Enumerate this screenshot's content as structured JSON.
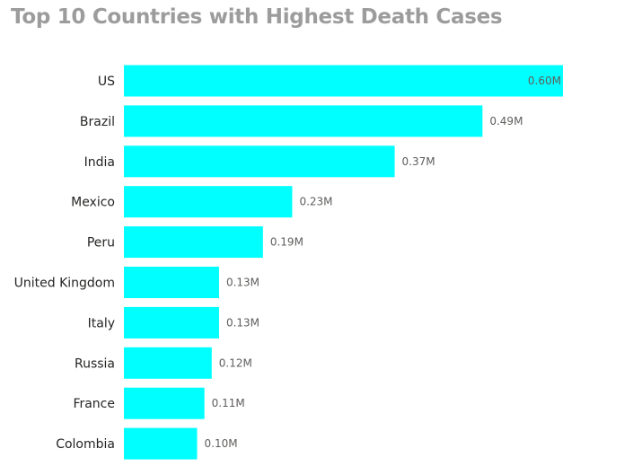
{
  "chart_data": {
    "type": "bar",
    "orientation": "horizontal",
    "title": "Top 10 Countries with Highest Death Cases",
    "categories": [
      "US",
      "Brazil",
      "India",
      "Mexico",
      "Peru",
      "United Kingdom",
      "Italy",
      "Russia",
      "France",
      "Colombia"
    ],
    "values": [
      0.6,
      0.49,
      0.37,
      0.23,
      0.19,
      0.13,
      0.13,
      0.12,
      0.11,
      0.1
    ],
    "data_labels": [
      "0.60M",
      "0.49M",
      "0.37M",
      "0.23M",
      "0.19M",
      "0.13M",
      "0.13M",
      "0.12M",
      "0.11M",
      "0.10M"
    ],
    "unit": "M",
    "xlim": [
      0,
      0.6
    ],
    "xlabel": "",
    "ylabel": "",
    "grid": false,
    "bar_color": "#00FFFF"
  }
}
